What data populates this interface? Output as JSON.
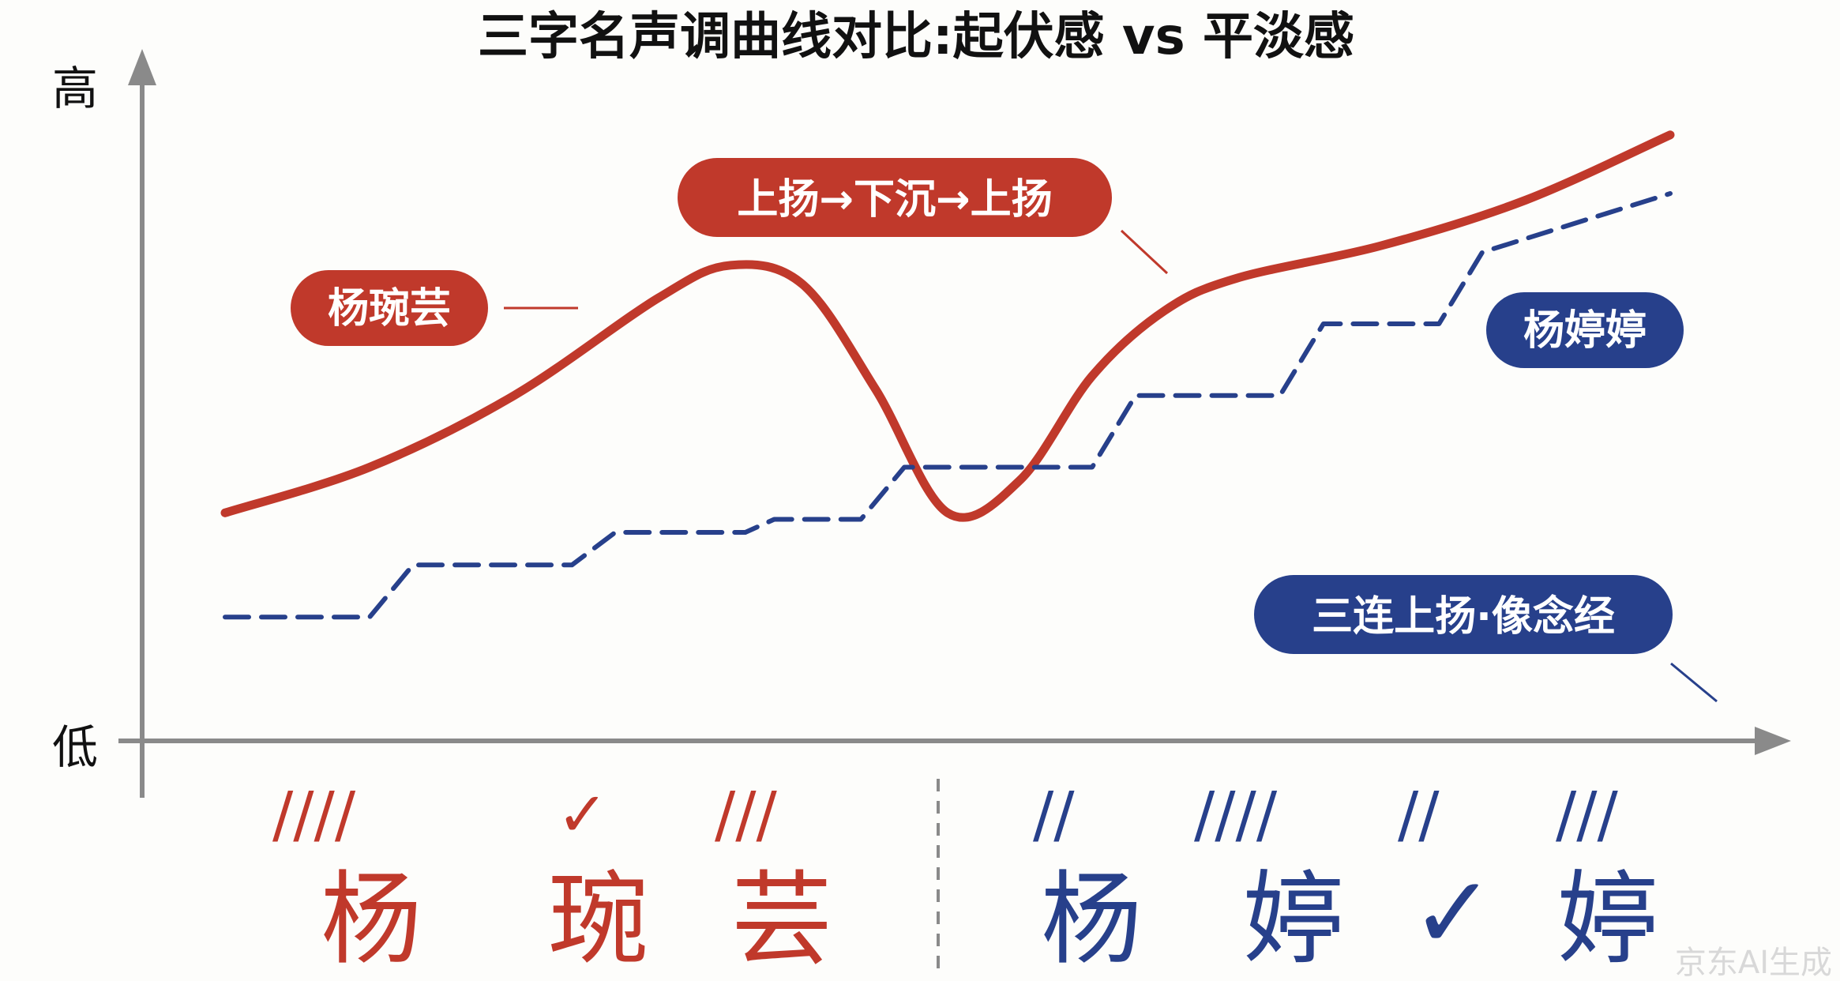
{
  "title": "三字名声调曲线对比:起伏感 vs 平淡感",
  "axis": {
    "y_high": "高",
    "y_low": "低"
  },
  "colors": {
    "red": "#c0392b",
    "blue": "#27408b",
    "axis": "#8a8a8a"
  },
  "labels": {
    "red_name": "杨琬芸",
    "red_pattern": "上扬→下沉→上扬",
    "blue_name": "杨婷婷",
    "blue_pattern": "三连上扬·像念经"
  },
  "names": {
    "red": [
      "杨",
      "琬",
      "芸"
    ],
    "blue": [
      "杨",
      "婷",
      "✓",
      "婷"
    ]
  },
  "tone_marks": {
    "red": [
      "////",
      "✓",
      "///"
    ],
    "blue": [
      "//",
      "////",
      "//",
      "///"
    ]
  },
  "watermark": "京东AI生成",
  "chart_data": {
    "type": "line",
    "title": "三字名声调曲线对比:起伏感 vs 平淡感",
    "ylabel_high": "高",
    "ylabel_low": "低",
    "grid": false,
    "x_range": [
      0,
      10
    ],
    "y_range": [
      0,
      10
    ],
    "series": [
      {
        "name": "杨琬芸",
        "style": "solid",
        "color": "#c0392b",
        "points": [
          [
            0,
            3.1
          ],
          [
            1,
            3.8
          ],
          [
            2,
            4.9
          ],
          [
            3,
            6.4
          ],
          [
            3.5,
            6.9
          ],
          [
            4,
            6.6
          ],
          [
            4.5,
            5.0
          ],
          [
            5,
            3.1
          ],
          [
            5.5,
            3.6
          ],
          [
            6,
            5.2
          ],
          [
            6.5,
            6.2
          ],
          [
            7,
            6.7
          ],
          [
            8,
            7.2
          ],
          [
            9,
            7.9
          ],
          [
            10,
            8.9
          ]
        ]
      },
      {
        "name": "杨婷婷",
        "style": "dashed",
        "color": "#27408b",
        "points": [
          [
            0,
            1.5
          ],
          [
            1,
            1.5
          ],
          [
            1.3,
            2.3
          ],
          [
            2.4,
            2.3
          ],
          [
            2.7,
            2.8
          ],
          [
            3.6,
            2.8
          ],
          [
            3.8,
            3.0
          ],
          [
            4.4,
            3.0
          ],
          [
            4.7,
            3.8
          ],
          [
            6,
            3.8
          ],
          [
            6.3,
            4.9
          ],
          [
            7.3,
            4.9
          ],
          [
            7.6,
            6.0
          ],
          [
            8.4,
            6.0
          ],
          [
            8.7,
            7.1
          ],
          [
            10,
            8.0
          ]
        ]
      }
    ]
  }
}
